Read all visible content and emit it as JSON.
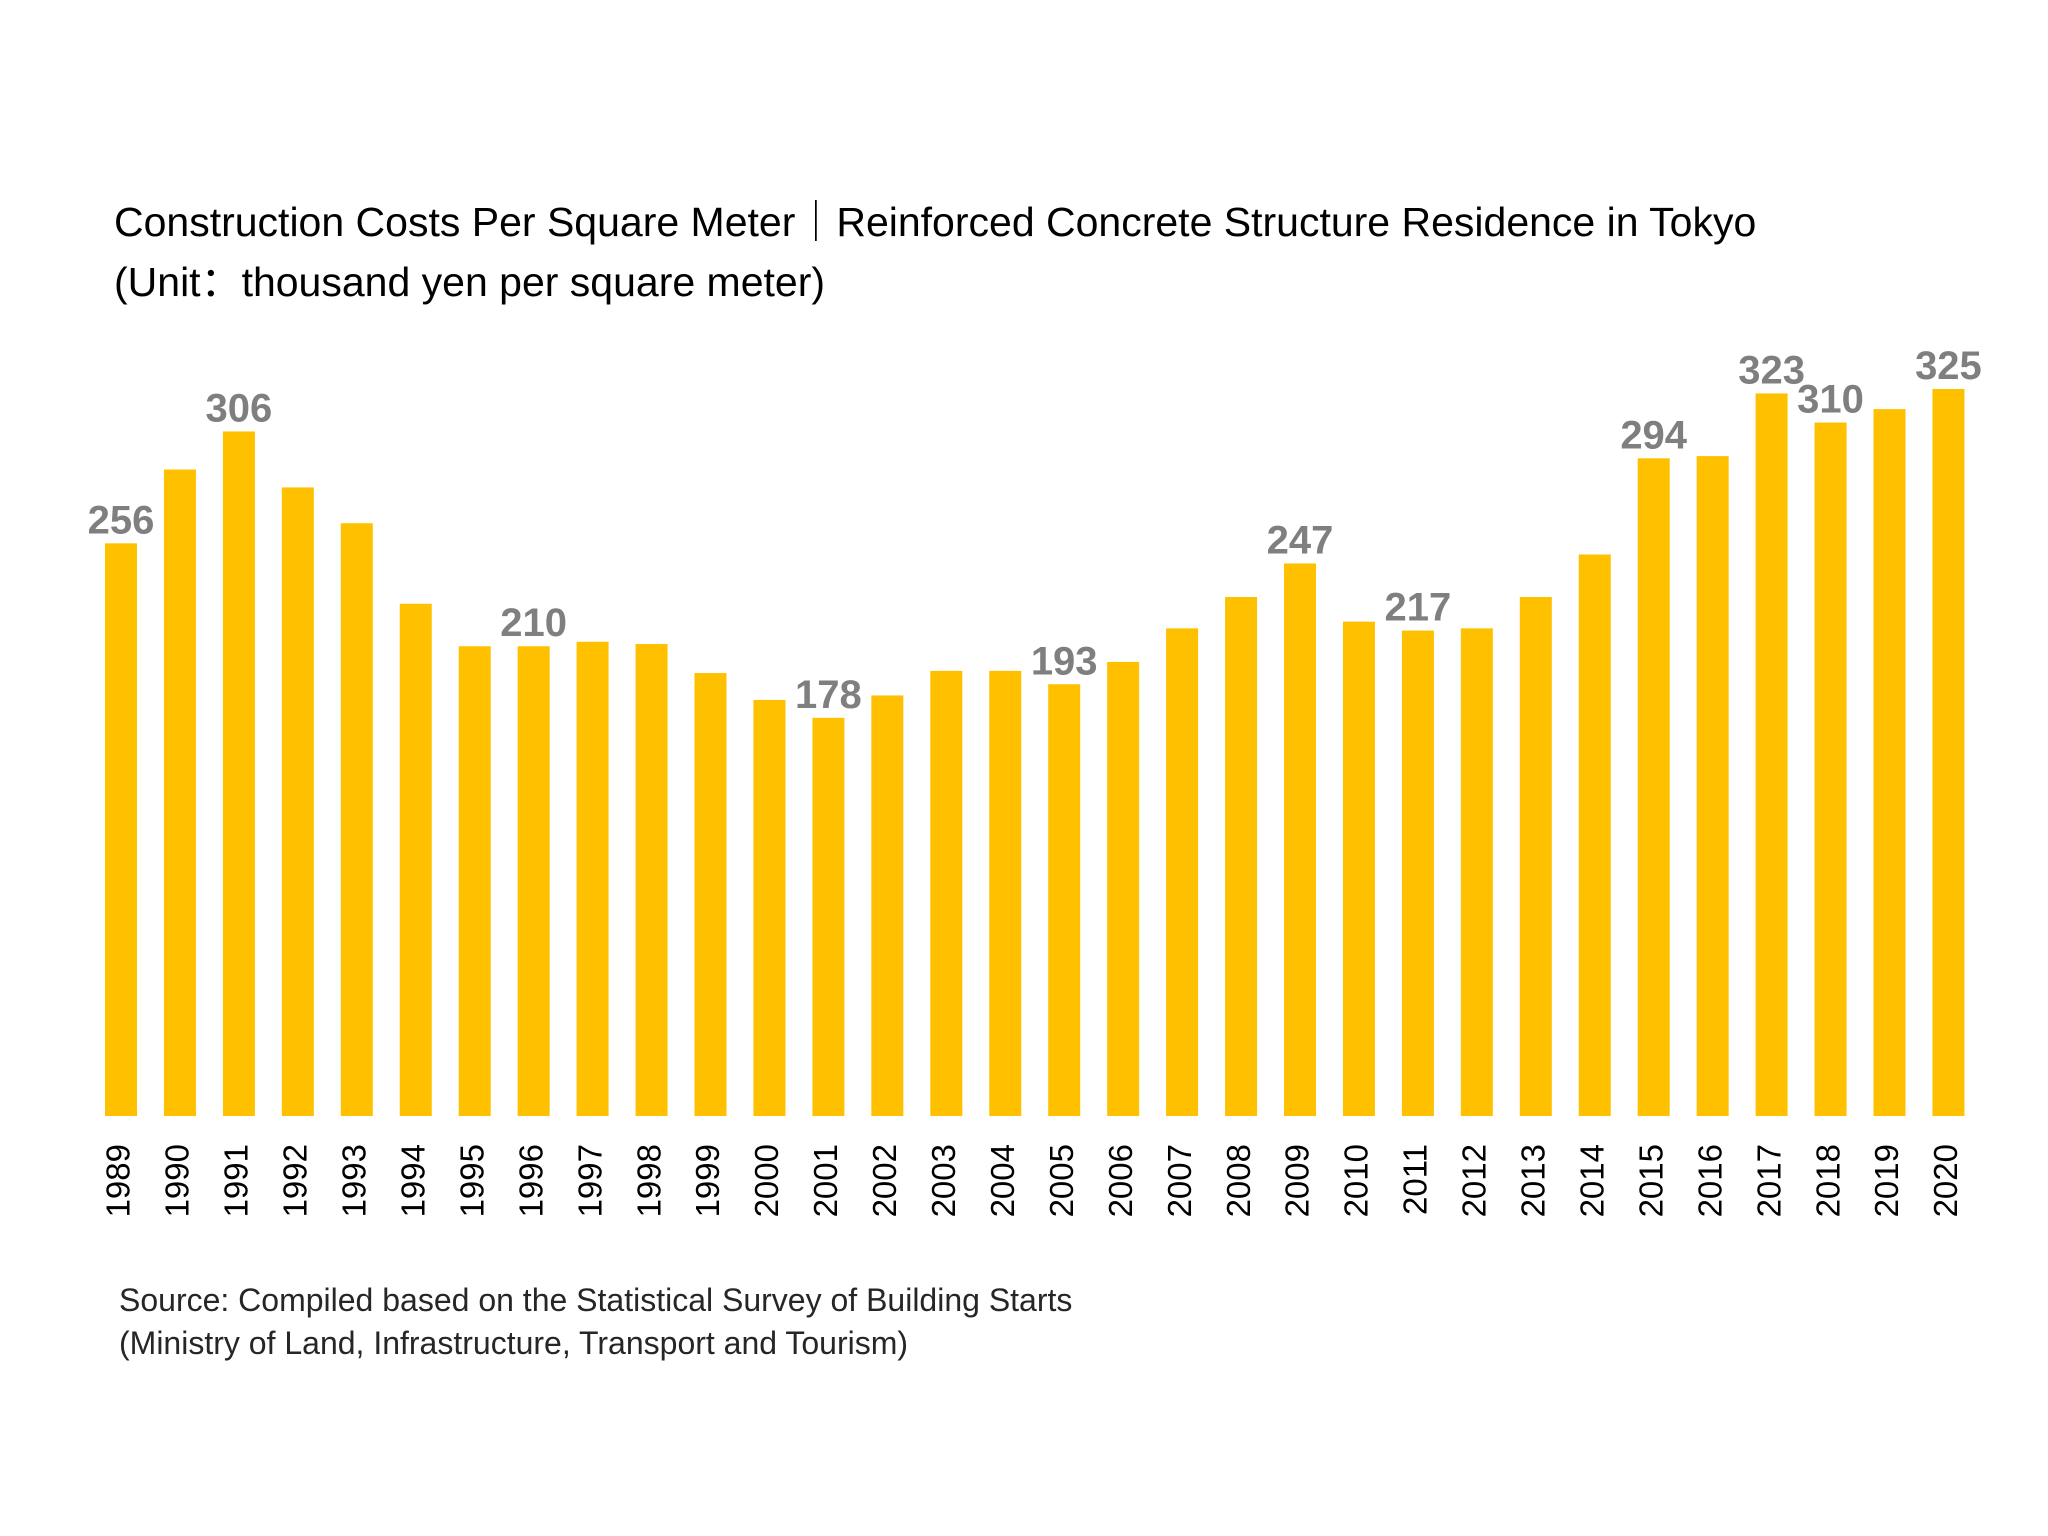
{
  "chart_data": {
    "type": "bar",
    "title": "Construction Costs Per Square Meter｜Reinforced Concrete Structure Residence in Tokyo",
    "subtitle": "(Unit：thousand yen per square meter)",
    "source": [
      "Source: Compiled based on the Statistical Survey of Building Starts",
      "(Ministry of Land, Infrastructure, Transport and Tourism)"
    ],
    "categories": [
      "1989",
      "1990",
      "1991",
      "1992",
      "1993",
      "1994",
      "1995",
      "1996",
      "1997",
      "1998",
      "1999",
      "2000",
      "2001",
      "2002",
      "2003",
      "2004",
      "2005",
      "2006",
      "2007",
      "2008",
      "2009",
      "2010",
      "2011",
      "2012",
      "2013",
      "2014",
      "2015",
      "2016",
      "2017",
      "2018",
      "2019",
      "2020"
    ],
    "values": [
      256,
      289,
      306,
      281,
      265,
      229,
      210,
      210,
      212,
      211,
      198,
      186,
      178,
      188,
      199,
      199,
      193,
      203,
      218,
      232,
      247,
      221,
      217,
      218,
      232,
      251,
      294,
      295,
      323,
      310,
      316,
      325
    ],
    "show_value_label": [
      true,
      false,
      true,
      false,
      false,
      false,
      false,
      true,
      false,
      false,
      false,
      false,
      true,
      false,
      false,
      false,
      true,
      false,
      false,
      false,
      true,
      false,
      true,
      false,
      false,
      false,
      true,
      false,
      true,
      true,
      false,
      true
    ],
    "color": "#ffc000"
  }
}
